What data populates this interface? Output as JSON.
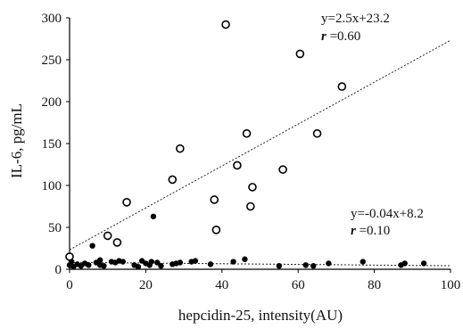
{
  "chart_data": {
    "type": "scatter",
    "title": "",
    "xlabel": "hepcidin-25, intensity(AU)",
    "ylabel": "IL-6, pg/mL",
    "xlim": [
      0,
      100
    ],
    "ylim": [
      0,
      300
    ],
    "xticks": [
      "0",
      "20",
      "40",
      "60",
      "80",
      "100"
    ],
    "yticks": [
      "0",
      "50",
      "100",
      "150",
      "200",
      "250",
      "300"
    ],
    "grid": false,
    "legend": "none",
    "series": [
      {
        "marker": "open-circle",
        "points": [
          [
            0,
            15
          ],
          [
            10,
            40
          ],
          [
            12.5,
            32
          ],
          [
            15,
            80
          ],
          [
            27,
            107
          ],
          [
            29,
            144
          ],
          [
            38,
            83
          ],
          [
            38.5,
            47
          ],
          [
            41,
            292
          ],
          [
            44,
            124
          ],
          [
            46.5,
            162
          ],
          [
            47.5,
            75
          ],
          [
            48,
            98
          ],
          [
            56,
            119
          ],
          [
            60.5,
            257
          ],
          [
            65,
            162
          ],
          [
            71.5,
            218
          ]
        ],
        "trendline": {
          "slope": 2.5,
          "intercept": 23.2
        },
        "equation": "y=2.5x+23.2",
        "r_symbol": "r",
        "r_value": " =0.60"
      },
      {
        "marker": "filled-circle",
        "points": [
          [
            0,
            5
          ],
          [
            0.5,
            9
          ],
          [
            1,
            3
          ],
          [
            2,
            6
          ],
          [
            3,
            4
          ],
          [
            4,
            7
          ],
          [
            5,
            5
          ],
          [
            6,
            28
          ],
          [
            7,
            8
          ],
          [
            8,
            11
          ],
          [
            8,
            5
          ],
          [
            9,
            4
          ],
          [
            11,
            9
          ],
          [
            12,
            8
          ],
          [
            13,
            10
          ],
          [
            14,
            9
          ],
          [
            17,
            5
          ],
          [
            18,
            3
          ],
          [
            19,
            10
          ],
          [
            20,
            7
          ],
          [
            21,
            5
          ],
          [
            21.5,
            9
          ],
          [
            22,
            63
          ],
          [
            23,
            8
          ],
          [
            24,
            4
          ],
          [
            27,
            6
          ],
          [
            28,
            7
          ],
          [
            29,
            8
          ],
          [
            32,
            9
          ],
          [
            33,
            10
          ],
          [
            37,
            6
          ],
          [
            43,
            9
          ],
          [
            46,
            12
          ],
          [
            55,
            4
          ],
          [
            62,
            5
          ],
          [
            64,
            4
          ],
          [
            68,
            7
          ],
          [
            77,
            9
          ],
          [
            87,
            5
          ],
          [
            88,
            7
          ],
          [
            93,
            7
          ]
        ],
        "trendline": {
          "slope": -0.04,
          "intercept": 8.2
        },
        "equation": "y=-0.04x+8.2",
        "r_symbol": "r",
        "r_value": " =0.10"
      }
    ]
  }
}
